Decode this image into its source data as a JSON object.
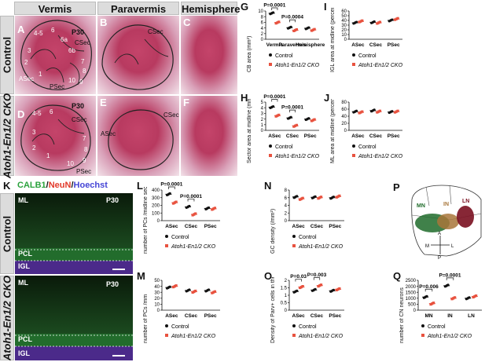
{
  "headers": {
    "vermis": "Vermis",
    "paravermis": "Paravermis",
    "hemisphere": "Hemisphere"
  },
  "rows": {
    "control": "Control",
    "cko": "Atoh1-En1/2 CKO"
  },
  "panels": {
    "A": {
      "letter": "A",
      "age": "P30",
      "labels": [
        "ASec",
        "CSec",
        "PSec",
        "1",
        "2",
        "3",
        "4-5",
        "6",
        "7",
        "8",
        "9",
        "10",
        "6a",
        "6b"
      ]
    },
    "B": {
      "letter": "B",
      "labels": [
        "CSec"
      ]
    },
    "C": {
      "letter": "C"
    },
    "D": {
      "letter": "D",
      "age": "P30",
      "labels": [
        "CSec",
        "PSec",
        "1",
        "2",
        "3",
        "4-5",
        "6",
        "7",
        "8",
        "9",
        "10"
      ]
    },
    "E": {
      "letter": "E",
      "labels": [
        "ASec",
        "CSec"
      ]
    },
    "F": {
      "letter": "F"
    },
    "K": {
      "letter": "K",
      "stain_calb1": "CALB1",
      "stain_slash1": "/",
      "stain_neun": "NeuN",
      "stain_slash2": "/",
      "stain_hoechst": "Hoechst",
      "age": "P30",
      "layers": [
        "ML",
        "PCL",
        "IGL"
      ],
      "stain_colors": {
        "calb1": "#35d04a",
        "neun": "#ff4b3a",
        "hoechst": "#6a6aff"
      }
    },
    "P": {
      "letter": "P",
      "nuclei": [
        "MN",
        "IN",
        "LN"
      ],
      "axes": {
        "a": "A",
        "p": "P",
        "m": "M",
        "l": "L"
      }
    }
  },
  "legend": {
    "control": "Control",
    "cko": "Atoh1-En1/2 CKO"
  },
  "colors": {
    "control": "#111111",
    "cko": "#e8523f",
    "histo": "#b83a60"
  },
  "chart_data": [
    {
      "id": "G",
      "letter": "G",
      "type": "scatter",
      "ylabel": "CB area (mm²)",
      "categories": [
        "Vermis",
        "Paravermis",
        "Hemisphere"
      ],
      "ylim": [
        0,
        10
      ],
      "yticks": [
        0,
        2,
        4,
        6,
        8,
        10
      ],
      "series": [
        {
          "name": "Control",
          "values": [
            9.2,
            4.1,
            3.9
          ]
        },
        {
          "name": "Atoh1-En1/2 CKO",
          "values": [
            5.9,
            3.2,
            3.3
          ]
        }
      ],
      "annotations": [
        {
          "text": "P=0.0001",
          "cat": 0
        },
        {
          "text": "P=0.0004",
          "cat": 1
        }
      ]
    },
    {
      "id": "H",
      "letter": "H",
      "type": "scatter",
      "ylabel": "Sector area at midline (mm²)",
      "categories": [
        "ASec",
        "CSec",
        "PSec"
      ],
      "ylim": [
        0,
        5
      ],
      "yticks": [
        0,
        1,
        2,
        3,
        4,
        5
      ],
      "series": [
        {
          "name": "Control",
          "values": [
            4.1,
            2.2,
            2.0
          ]
        },
        {
          "name": "Atoh1-En1/2 CKO",
          "values": [
            2.6,
            0.8,
            1.8
          ]
        }
      ],
      "annotations": [
        {
          "text": "P=0.0001",
          "cat": 0
        },
        {
          "text": "P=0.0001",
          "cat": 1
        }
      ]
    },
    {
      "id": "I",
      "letter": "I",
      "type": "scatter",
      "ylabel": "IGL area at midline (percent of total CB area)",
      "categories": [
        "ASec",
        "CSec",
        "PSec"
      ],
      "ylim": [
        0,
        60
      ],
      "yticks": [
        0,
        10,
        20,
        30,
        40,
        50,
        60
      ],
      "series": [
        {
          "name": "Control",
          "values": [
            35,
            36,
            40
          ]
        },
        {
          "name": "Atoh1-En1/2 CKO",
          "values": [
            38,
            35,
            43
          ]
        }
      ],
      "annotations": []
    },
    {
      "id": "J",
      "letter": "J",
      "type": "scatter",
      "ylabel": "ML area at midline (percent of total CB area)",
      "categories": [
        "ASec",
        "CSec",
        "PSec"
      ],
      "ylim": [
        0,
        80
      ],
      "yticks": [
        0,
        20,
        40,
        60,
        80
      ],
      "series": [
        {
          "name": "Control",
          "values": [
            53,
            56,
            52
          ]
        },
        {
          "name": "Atoh1-En1/2 CKO",
          "values": [
            51,
            53,
            53
          ]
        }
      ],
      "annotations": []
    },
    {
      "id": "L",
      "letter": "L",
      "type": "scatter",
      "ylabel": "number of PCs /midline section",
      "categories": [
        "ASec",
        "CSec",
        "PSec"
      ],
      "ylim": [
        0,
        400
      ],
      "yticks": [
        0,
        100,
        200,
        300,
        400
      ],
      "series": [
        {
          "name": "Control",
          "values": [
            345,
            180,
            160
          ]
        },
        {
          "name": "Atoh1-En1/2 CKO",
          "values": [
            235,
            82,
            155
          ]
        }
      ],
      "annotations": [
        {
          "text": "P=0.0001",
          "cat": 0
        },
        {
          "text": "P=0.0001",
          "cat": 1
        }
      ]
    },
    {
      "id": "M",
      "letter": "M",
      "type": "scatter",
      "ylabel": "number of PCs /mm",
      "categories": [
        "ASec",
        "CSec",
        "PSec"
      ],
      "ylim": [
        0,
        50
      ],
      "yticks": [
        0,
        10,
        20,
        30,
        40,
        50
      ],
      "series": [
        {
          "name": "Control",
          "values": [
            38,
            33,
            33
          ]
        },
        {
          "name": "Atoh1-En1/2 CKO",
          "values": [
            40,
            31,
            30
          ]
        }
      ],
      "annotations": []
    },
    {
      "id": "N",
      "letter": "N",
      "type": "scatter",
      "ylabel": "GC density (/mm²)",
      "categories": [
        "ASec",
        "CSec",
        "PSec"
      ],
      "ylim": [
        0,
        8
      ],
      "yticks": [
        0,
        2,
        4,
        6,
        8
      ],
      "series": [
        {
          "name": "Control",
          "values": [
            6.2,
            6.1,
            6.0
          ]
        },
        {
          "name": "Atoh1-En1/2 CKO",
          "values": [
            5.7,
            6.0,
            6.3
          ]
        }
      ],
      "annotations": []
    },
    {
      "id": "O",
      "letter": "O",
      "type": "scatter",
      "ylabel": "Density of Parv+ cells in the ML",
      "categories": [
        "ASec",
        "CSec",
        "PSec"
      ],
      "ylim": [
        0,
        2
      ],
      "yticks": [
        0,
        0.5,
        1.0,
        1.5,
        2.0
      ],
      "series": [
        {
          "name": "Control",
          "values": [
            1.25,
            1.35,
            1.3
          ]
        },
        {
          "name": "Atoh1-En1/2 CKO",
          "values": [
            1.55,
            1.65,
            1.4
          ]
        }
      ],
      "annotations": [
        {
          "text": "P=0.03",
          "cat": 0
        },
        {
          "text": "P=0.003",
          "cat": 1
        }
      ]
    },
    {
      "id": "Q",
      "letter": "Q",
      "type": "scatter",
      "ylabel": "number of CN neurons",
      "categories": [
        "MN",
        "IN",
        "LN"
      ],
      "ylim": [
        0,
        2500
      ],
      "yticks": [
        0,
        500,
        1000,
        1500,
        2000,
        2500
      ],
      "series": [
        {
          "name": "Control",
          "values": [
            1100,
            2050,
            1000
          ]
        },
        {
          "name": "Atoh1-En1/2 CKO",
          "values": [
            550,
            1000,
            1150
          ]
        }
      ],
      "annotations": [
        {
          "text": "P=0.006",
          "cat": 0
        },
        {
          "text": "P=0.0001",
          "cat": 1
        }
      ]
    }
  ]
}
